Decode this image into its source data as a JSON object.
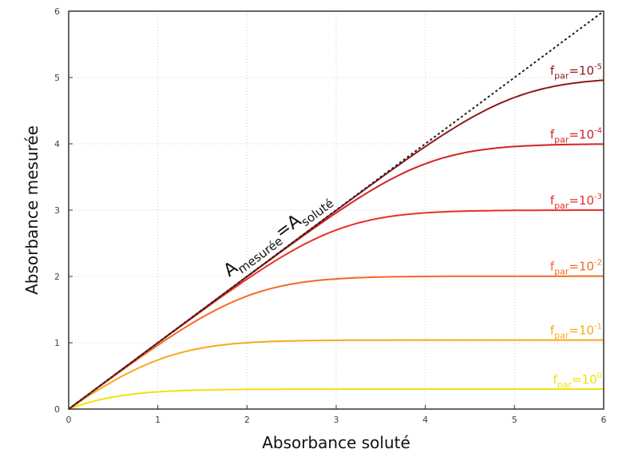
{
  "chart_data": {
    "type": "line",
    "title": "",
    "xlabel": "Absorbance soluté",
    "ylabel": "Absorbance mesurée",
    "xlim": [
      0,
      6
    ],
    "ylim": [
      0,
      6
    ],
    "grid": true,
    "xticks": [
      "0",
      "1",
      "2",
      "3",
      "4",
      "5",
      "6"
    ],
    "yticks": [
      "0",
      "1",
      "2",
      "3",
      "4",
      "5",
      "6"
    ],
    "x": [
      0,
      1,
      2,
      3,
      4,
      5,
      6
    ],
    "reference": {
      "name": "A_mesurée = A_soluté",
      "label_main": "A",
      "label_sub1": "mesurée",
      "label_eq": "=A",
      "label_sub2": "soluté",
      "style": "dashed",
      "color": "#222222",
      "values": [
        0,
        1,
        2,
        3,
        4,
        5,
        6
      ]
    },
    "series": [
      {
        "name": "f_par=10^0",
        "f": 1,
        "exp": "0",
        "color": "#f2e20a",
        "values": [
          0,
          0.26,
          0.297,
          0.301,
          0.301,
          0.301,
          0.301
        ]
      },
      {
        "name": "f_par=10^-1",
        "f": 0.1,
        "exp": "-1",
        "color": "#f7a91c",
        "values": [
          0,
          0.74,
          1.0,
          1.037,
          1.041,
          1.041,
          1.041
        ]
      },
      {
        "name": "f_par=10^-2",
        "f": 0.01,
        "exp": "-2",
        "color": "#f26a22",
        "values": [
          0,
          0.963,
          1.703,
          1.963,
          2.0,
          2.004,
          2.004
        ]
      },
      {
        "name": "f_par=10^-3",
        "f": 0.001,
        "exp": "-3",
        "color": "#e8302a",
        "values": [
          0,
          0.996,
          1.959,
          2.699,
          2.959,
          2.996,
          3.0
        ]
      },
      {
        "name": "f_par=10^-4",
        "f": 0.0001,
        "exp": "-4",
        "color": "#d42323",
        "values": [
          0,
          1.0,
          1.996,
          2.959,
          3.699,
          3.959,
          3.996
        ]
      },
      {
        "name": "f_par=10^-5",
        "f": 1e-05,
        "exp": "-5",
        "color": "#8e1b1b",
        "values": [
          0,
          1.0,
          2.0,
          2.996,
          3.959,
          4.699,
          4.959
        ]
      }
    ],
    "label_f": "f",
    "label_sub": "par",
    "label_eq": "=10"
  }
}
